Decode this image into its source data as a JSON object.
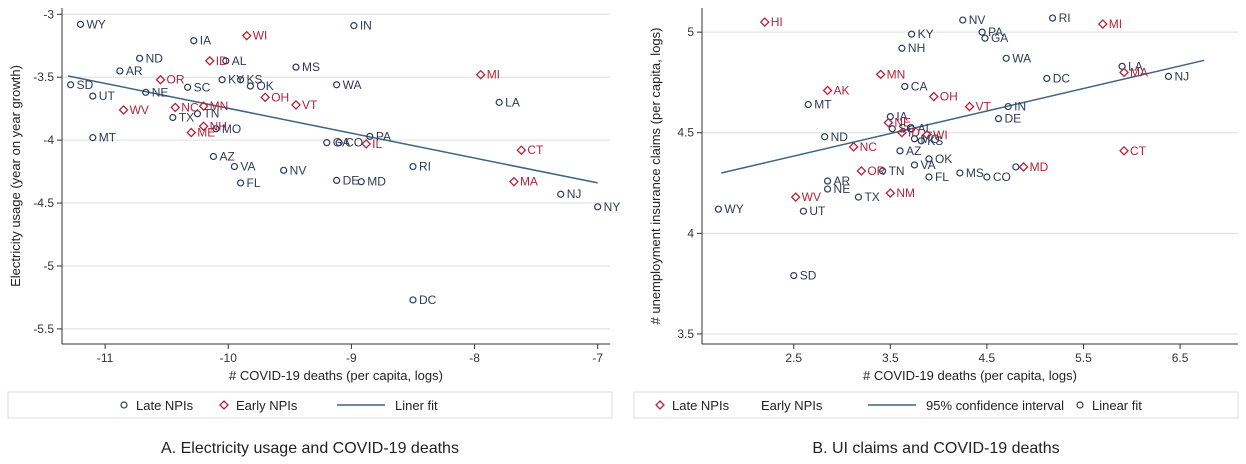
{
  "colors": {
    "late": "#2b3a5c",
    "early": "#b5233a",
    "fit": "#3d6480",
    "axis": "#333333",
    "grid": "#dddddd",
    "label_late": "#2f3a55",
    "label_early": "#b5233a"
  },
  "chart_data": [
    {
      "type": "scatter",
      "caption": "A. Electricity usage and COVID-19 deaths",
      "xlabel": "# COVID-19 deaths (per capita, logs)",
      "ylabel": "Electricity usage (year on year growth)",
      "xlim": [
        -11.35,
        -6.9
      ],
      "ylim": [
        -5.62,
        -2.95
      ],
      "xticks": [
        -11,
        -10,
        -9,
        -8,
        -7
      ],
      "xtick_labels": [
        "-11",
        "-10",
        "-9",
        "-8",
        "-7"
      ],
      "yticks": [
        -5.5,
        -5,
        -4.5,
        -4,
        -3.5,
        -3
      ],
      "ytick_labels": [
        "-5.5",
        "-5",
        "-4.5",
        "-4",
        "-3.5",
        "-3"
      ],
      "grid": "horizontal",
      "legend_position": "bottom",
      "legend": [
        {
          "marker": "circle",
          "label": "Late NPIs"
        },
        {
          "marker": "diamond",
          "label": "Early NPIs"
        },
        {
          "marker": "line",
          "label": "Liner fit"
        }
      ],
      "fit_line": {
        "x": [
          -11.3,
          -7.0
        ],
        "y": [
          -3.49,
          -4.34
        ]
      },
      "points": [
        {
          "label": "WY",
          "x": -11.2,
          "y": -3.08,
          "group": "late"
        },
        {
          "label": "ND",
          "x": -10.72,
          "y": -3.35,
          "group": "late"
        },
        {
          "label": "AR",
          "x": -10.88,
          "y": -3.45,
          "group": "late"
        },
        {
          "label": "SD",
          "x": -11.28,
          "y": -3.56,
          "group": "late"
        },
        {
          "label": "UT",
          "x": -11.1,
          "y": -3.65,
          "group": "late"
        },
        {
          "label": "NE",
          "x": -10.67,
          "y": -3.62,
          "group": "late"
        },
        {
          "label": "OR",
          "x": -10.55,
          "y": -3.52,
          "group": "early"
        },
        {
          "label": "SC",
          "x": -10.33,
          "y": -3.58,
          "group": "late"
        },
        {
          "label": "IA",
          "x": -10.28,
          "y": -3.21,
          "group": "late"
        },
        {
          "label": "ID",
          "x": -10.15,
          "y": -3.37,
          "group": "early"
        },
        {
          "label": "AL",
          "x": -10.02,
          "y": -3.37,
          "group": "late"
        },
        {
          "label": "WI",
          "x": -9.85,
          "y": -3.17,
          "group": "early"
        },
        {
          "label": "KY",
          "x": -10.05,
          "y": -3.52,
          "group": "late"
        },
        {
          "label": "KS",
          "x": -9.9,
          "y": -3.52,
          "group": "late"
        },
        {
          "label": "OK",
          "x": -9.82,
          "y": -3.57,
          "group": "late"
        },
        {
          "label": "MS",
          "x": -9.45,
          "y": -3.42,
          "group": "late"
        },
        {
          "label": "WA",
          "x": -9.12,
          "y": -3.56,
          "group": "late"
        },
        {
          "label": "IN",
          "x": -8.98,
          "y": -3.09,
          "group": "late"
        },
        {
          "label": "MI",
          "x": -7.95,
          "y": -3.48,
          "group": "early"
        },
        {
          "label": "LA",
          "x": -7.8,
          "y": -3.7,
          "group": "late"
        },
        {
          "label": "OH",
          "x": -9.7,
          "y": -3.66,
          "group": "early"
        },
        {
          "label": "VT",
          "x": -9.45,
          "y": -3.72,
          "group": "early"
        },
        {
          "label": "WV",
          "x": -10.85,
          "y": -3.76,
          "group": "early"
        },
        {
          "label": "NC",
          "x": -10.43,
          "y": -3.74,
          "group": "early"
        },
        {
          "label": "MN",
          "x": -10.2,
          "y": -3.73,
          "group": "early"
        },
        {
          "label": "TX",
          "x": -10.45,
          "y": -3.82,
          "group": "late"
        },
        {
          "label": "TN",
          "x": -10.25,
          "y": -3.79,
          "group": "late"
        },
        {
          "label": "MT",
          "x": -11.1,
          "y": -3.98,
          "group": "late"
        },
        {
          "label": "ME",
          "x": -10.3,
          "y": -3.94,
          "group": "early"
        },
        {
          "label": "NH",
          "x": -10.2,
          "y": -3.89,
          "group": "early"
        },
        {
          "label": "MO",
          "x": -10.1,
          "y": -3.91,
          "group": "late"
        },
        {
          "label": "PA",
          "x": -8.85,
          "y": -3.97,
          "group": "late"
        },
        {
          "label": "GA",
          "x": -9.2,
          "y": -4.02,
          "group": "late"
        },
        {
          "label": "CO",
          "x": -9.1,
          "y": -4.02,
          "group": "late"
        },
        {
          "label": "IL",
          "x": -8.88,
          "y": -4.03,
          "group": "early"
        },
        {
          "label": "CT",
          "x": -7.62,
          "y": -4.08,
          "group": "early"
        },
        {
          "label": "AZ",
          "x": -10.12,
          "y": -4.13,
          "group": "late"
        },
        {
          "label": "VA",
          "x": -9.95,
          "y": -4.21,
          "group": "late"
        },
        {
          "label": "RI",
          "x": -8.5,
          "y": -4.21,
          "group": "late"
        },
        {
          "label": "NV",
          "x": -9.55,
          "y": -4.24,
          "group": "late"
        },
        {
          "label": "FL",
          "x": -9.9,
          "y": -4.34,
          "group": "late"
        },
        {
          "label": "DE",
          "x": -9.12,
          "y": -4.32,
          "group": "late"
        },
        {
          "label": "MD",
          "x": -8.92,
          "y": -4.33,
          "group": "late"
        },
        {
          "label": "MA",
          "x": -7.68,
          "y": -4.33,
          "group": "early"
        },
        {
          "label": "NJ",
          "x": -7.3,
          "y": -4.43,
          "group": "late"
        },
        {
          "label": "NY",
          "x": -7.0,
          "y": -4.53,
          "group": "late"
        },
        {
          "label": "DC",
          "x": -8.5,
          "y": -5.27,
          "group": "late"
        }
      ]
    },
    {
      "type": "scatter",
      "caption": "B. UI claims and COVID-19 deaths",
      "xlabel": "# COVID-19 deaths (per capita, logs)",
      "ylabel": "# unemployment insurance claims (per capita, logs)",
      "xlim": [
        1.55,
        7.1
      ],
      "ylim": [
        3.45,
        5.12
      ],
      "xticks": [
        2.5,
        3.5,
        4.5,
        5.5,
        6.5
      ],
      "xtick_labels": [
        "2.5",
        "3.5",
        "4.5",
        "5.5",
        "6.5"
      ],
      "yticks": [
        3.5,
        4,
        4.5,
        5
      ],
      "ytick_labels": [
        "3.5",
        "4",
        "4.5",
        "5"
      ],
      "grid": "horizontal",
      "legend_position": "bottom",
      "legend": [
        {
          "marker": "diamond",
          "label": "Late NPIs"
        },
        {
          "marker": "none",
          "label": "Early NPIs"
        },
        {
          "marker": "line",
          "label": "95% confidence interval"
        },
        {
          "marker": "circle",
          "label": "Linear fit"
        }
      ],
      "fit_line": {
        "x": [
          1.75,
          6.75
        ],
        "y": [
          4.3,
          4.86
        ]
      },
      "points": [
        {
          "label": "HI",
          "x": 2.2,
          "y": 5.05,
          "group": "early"
        },
        {
          "label": "NV",
          "x": 4.25,
          "y": 5.06,
          "group": "late"
        },
        {
          "label": "RI",
          "x": 5.18,
          "y": 5.07,
          "group": "late"
        },
        {
          "label": "MI",
          "x": 5.7,
          "y": 5.04,
          "group": "early"
        },
        {
          "label": "KY",
          "x": 3.72,
          "y": 4.99,
          "group": "late"
        },
        {
          "label": "PA",
          "x": 4.45,
          "y": 5.0,
          "group": "late"
        },
        {
          "label": "GA",
          "x": 4.48,
          "y": 4.97,
          "group": "late"
        },
        {
          "label": "NH",
          "x": 3.62,
          "y": 4.92,
          "group": "late"
        },
        {
          "label": "WA",
          "x": 4.7,
          "y": 4.87,
          "group": "late"
        },
        {
          "label": "LA",
          "x": 5.9,
          "y": 4.83,
          "group": "late"
        },
        {
          "label": "MA",
          "x": 5.92,
          "y": 4.8,
          "group": "early"
        },
        {
          "label": "MN",
          "x": 3.4,
          "y": 4.79,
          "group": "early"
        },
        {
          "label": "NJ",
          "x": 6.38,
          "y": 4.78,
          "group": "late"
        },
        {
          "label": "DC",
          "x": 5.12,
          "y": 4.77,
          "group": "late"
        },
        {
          "label": "CA",
          "x": 3.65,
          "y": 4.73,
          "group": "late"
        },
        {
          "label": "AK",
          "x": 2.85,
          "y": 4.71,
          "group": "early"
        },
        {
          "label": "OH",
          "x": 3.95,
          "y": 4.68,
          "group": "early"
        },
        {
          "label": "MT",
          "x": 2.65,
          "y": 4.64,
          "group": "late"
        },
        {
          "label": "VT",
          "x": 4.32,
          "y": 4.63,
          "group": "early"
        },
        {
          "label": "IN",
          "x": 4.72,
          "y": 4.63,
          "group": "late"
        },
        {
          "label": "IA",
          "x": 3.5,
          "y": 4.58,
          "group": "late"
        },
        {
          "label": "DE",
          "x": 4.62,
          "y": 4.57,
          "group": "late"
        },
        {
          "label": "NE",
          "x": 3.48,
          "y": 4.55,
          "group": "early"
        },
        {
          "label": "SC",
          "x": 3.52,
          "y": 4.52,
          "group": "late"
        },
        {
          "label": "AL",
          "x": 3.72,
          "y": 4.52,
          "group": "late"
        },
        {
          "label": "ID",
          "x": 3.62,
          "y": 4.5,
          "group": "early"
        },
        {
          "label": "WI",
          "x": 3.88,
          "y": 4.49,
          "group": "early"
        },
        {
          "label": "ND",
          "x": 2.82,
          "y": 4.48,
          "group": "late"
        },
        {
          "label": "MO",
          "x": 3.75,
          "y": 4.47,
          "group": "late"
        },
        {
          "label": "KS",
          "x": 3.82,
          "y": 4.46,
          "group": "late"
        },
        {
          "label": "NC",
          "x": 3.12,
          "y": 4.43,
          "group": "early"
        },
        {
          "label": "AZ",
          "x": 3.6,
          "y": 4.41,
          "group": "late"
        },
        {
          "label": "CT",
          "x": 5.92,
          "y": 4.41,
          "group": "early"
        },
        {
          "label": "OK",
          "x": 3.9,
          "y": 4.37,
          "group": "late"
        },
        {
          "label": "VA",
          "x": 3.75,
          "y": 4.34,
          "group": "late"
        },
        {
          "label": "MD",
          "x": 4.88,
          "y": 4.33,
          "group": "early"
        },
        {
          "label": "ID2",
          "x": 4.8,
          "y": 4.33,
          "group": "late",
          "hidden_label": true
        },
        {
          "label": "OR",
          "x": 3.2,
          "y": 4.31,
          "group": "early"
        },
        {
          "label": "TN",
          "x": 3.42,
          "y": 4.31,
          "group": "late"
        },
        {
          "label": "MS",
          "x": 4.22,
          "y": 4.3,
          "group": "late"
        },
        {
          "label": "FL",
          "x": 3.9,
          "y": 4.28,
          "group": "late"
        },
        {
          "label": "CO",
          "x": 4.5,
          "y": 4.28,
          "group": "late"
        },
        {
          "label": "AR",
          "x": 2.85,
          "y": 4.26,
          "group": "late"
        },
        {
          "label": "NE",
          "x": 2.85,
          "y": 4.22,
          "group": "late"
        },
        {
          "label": "NM",
          "x": 3.5,
          "y": 4.2,
          "group": "early"
        },
        {
          "label": "WV",
          "x": 2.52,
          "y": 4.18,
          "group": "early"
        },
        {
          "label": "TX",
          "x": 3.17,
          "y": 4.18,
          "group": "late"
        },
        {
          "label": "WY",
          "x": 1.72,
          "y": 4.12,
          "group": "late"
        },
        {
          "label": "UT",
          "x": 2.6,
          "y": 4.11,
          "group": "late"
        },
        {
          "label": "SD",
          "x": 2.5,
          "y": 3.79,
          "group": "late"
        }
      ]
    }
  ]
}
